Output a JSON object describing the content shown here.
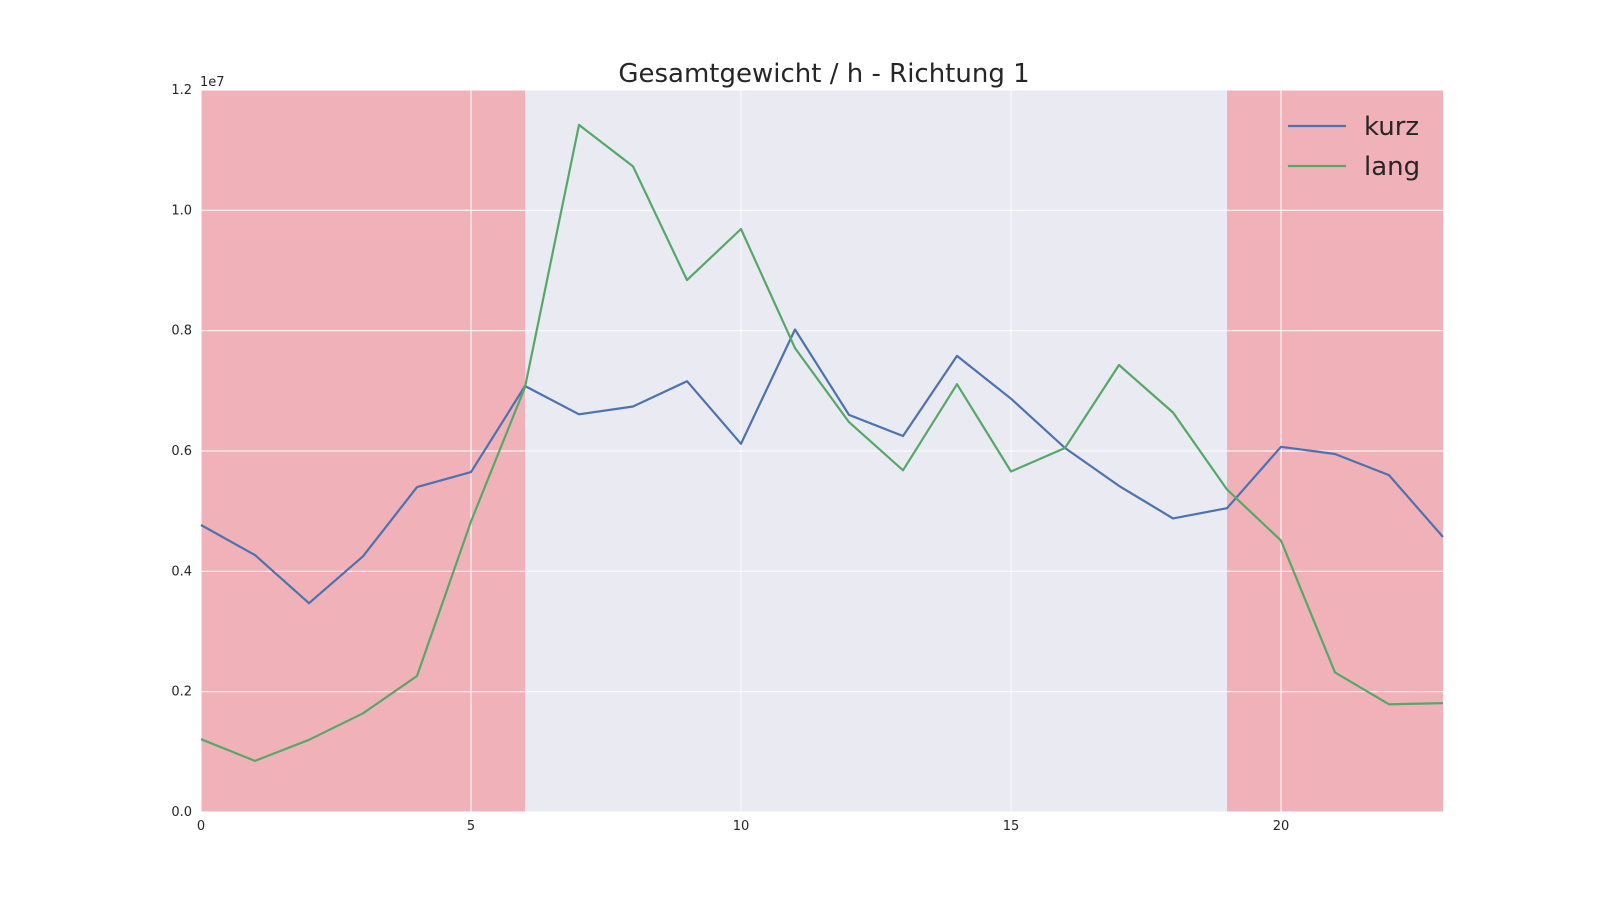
{
  "chart_data": {
    "type": "line",
    "title": "Gesamtgewicht / h - Richtung 1",
    "xlabel": "",
    "ylabel": "",
    "y_offset_label": "1e7",
    "xlim": [
      0,
      23
    ],
    "ylim": [
      0,
      12000000
    ],
    "x_ticks": [
      0,
      5,
      10,
      15,
      20
    ],
    "y_ticks": [
      0,
      2000000,
      4000000,
      6000000,
      8000000,
      10000000,
      12000000
    ],
    "y_tick_labels": [
      "0.0",
      "0.2",
      "0.4",
      "0.6",
      "0.8",
      "1.0",
      "1.2"
    ],
    "grid": true,
    "legend_position": "top-right",
    "background_color": "#eaeaf2",
    "shaded_regions": [
      {
        "x_start": 0,
        "x_end": 6,
        "color": "#f0b2b8"
      },
      {
        "x_start": 19,
        "x_end": 23,
        "color": "#f0b2b8"
      }
    ],
    "x": [
      0,
      1,
      2,
      3,
      4,
      5,
      6,
      7,
      8,
      9,
      10,
      11,
      12,
      13,
      14,
      15,
      16,
      17,
      18,
      19,
      20,
      21,
      22,
      23
    ],
    "series": [
      {
        "name": "kurz",
        "color": "#4c72b0",
        "values": [
          4770000,
          4270000,
          3470000,
          4250000,
          5400000,
          5650000,
          7080000,
          6610000,
          6740000,
          7160000,
          6120000,
          8020000,
          6600000,
          6250000,
          7580000,
          6870000,
          6050000,
          5420000,
          4880000,
          5050000,
          6070000,
          5950000,
          5600000,
          4570000
        ]
      },
      {
        "name": "lang",
        "color": "#55a868",
        "values": [
          1210000,
          850000,
          1200000,
          1640000,
          2260000,
          4830000,
          7060000,
          11420000,
          10730000,
          8840000,
          9690000,
          7710000,
          6480000,
          5680000,
          7110000,
          5660000,
          6050000,
          7430000,
          6640000,
          5360000,
          4510000,
          2320000,
          1790000,
          1810000
        ]
      }
    ]
  }
}
